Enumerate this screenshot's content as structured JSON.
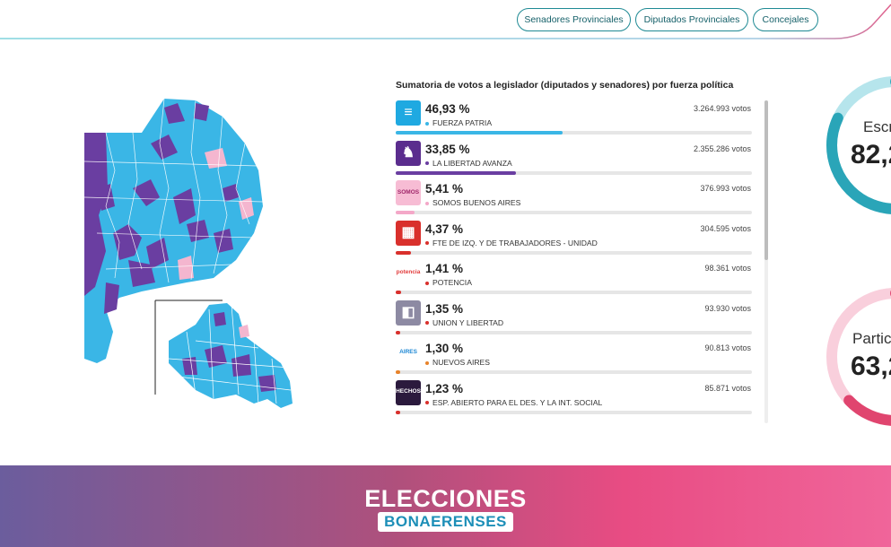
{
  "nav": {
    "tabs": [
      {
        "label": "Senadores Provinciales"
      },
      {
        "label": "Diputados Provinciales"
      },
      {
        "label": "Concejales"
      }
    ]
  },
  "results": {
    "title": "Sumatoria de votos a legislador (diputados y senadores) por fuerza política",
    "parties": [
      {
        "pct": "46,93 %",
        "votes": "3.264.993 votos",
        "name": "FUERZA PATRIA",
        "color": "#3ab6e6",
        "share": 0.4693,
        "logo": "fp-logo"
      },
      {
        "pct": "33,85 %",
        "votes": "2.355.286 votos",
        "name": "LA LIBERTAD AVANZA",
        "color": "#6a3ea1",
        "share": 0.3385,
        "logo": "lla-logo"
      },
      {
        "pct": "5,41 %",
        "votes": "376.993 votos",
        "name": "SOMOS BUENOS AIRES",
        "color": "#f4a8c8",
        "share": 0.0541,
        "logo": "somos-logo",
        "logo_text": "SOMOS"
      },
      {
        "pct": "4,37 %",
        "votes": "304.595 votos",
        "name": "FTE DE IZQ. Y DE TRABAJADORES - UNIDAD",
        "color": "#d9302c",
        "share": 0.0437,
        "logo": "fit-logo"
      },
      {
        "pct": "1,41 %",
        "votes": "98.361 votos",
        "name": "POTENCIA",
        "color": "#d9302c",
        "share": 0.0141,
        "logo": "potencia-logo",
        "logo_text": "potencia"
      },
      {
        "pct": "1,35 %",
        "votes": "93.930 votos",
        "name": "UNION Y LIBERTAD",
        "color": "#d9302c",
        "share": 0.0135,
        "logo": "union-libertad-logo"
      },
      {
        "pct": "1,30 %",
        "votes": "90.813 votos",
        "name": "NUEVOS AIRES",
        "color": "#e8832a",
        "share": 0.013,
        "logo": "nuevos-aires-logo",
        "logo_text": "AIRES"
      },
      {
        "pct": "1,23 %",
        "votes": "85.871 votos",
        "name": "ESP. ABIERTO PARA EL DES. Y LA INT. SOCIAL",
        "color": "#d9302c",
        "share": 0.0123,
        "logo": "hechos-logo",
        "logo_text": "HECHOS"
      }
    ]
  },
  "gauges": [
    {
      "label": "Escr",
      "value": "82,2",
      "color": "#2aa5b8",
      "light": "#b6e5ec",
      "level": 0.82
    },
    {
      "label": "Partic",
      "value": "63,2",
      "color": "#e0456f",
      "light": "#f9cfdc",
      "level": 0.63
    }
  ],
  "footer": {
    "brand_top": "ELECCIONES",
    "brand_bottom": "BONAERENSES"
  },
  "map": {
    "colors": {
      "fp": "#3ab6e6",
      "lla": "#6a3ea1",
      "somos": "#f4b6cf"
    }
  }
}
